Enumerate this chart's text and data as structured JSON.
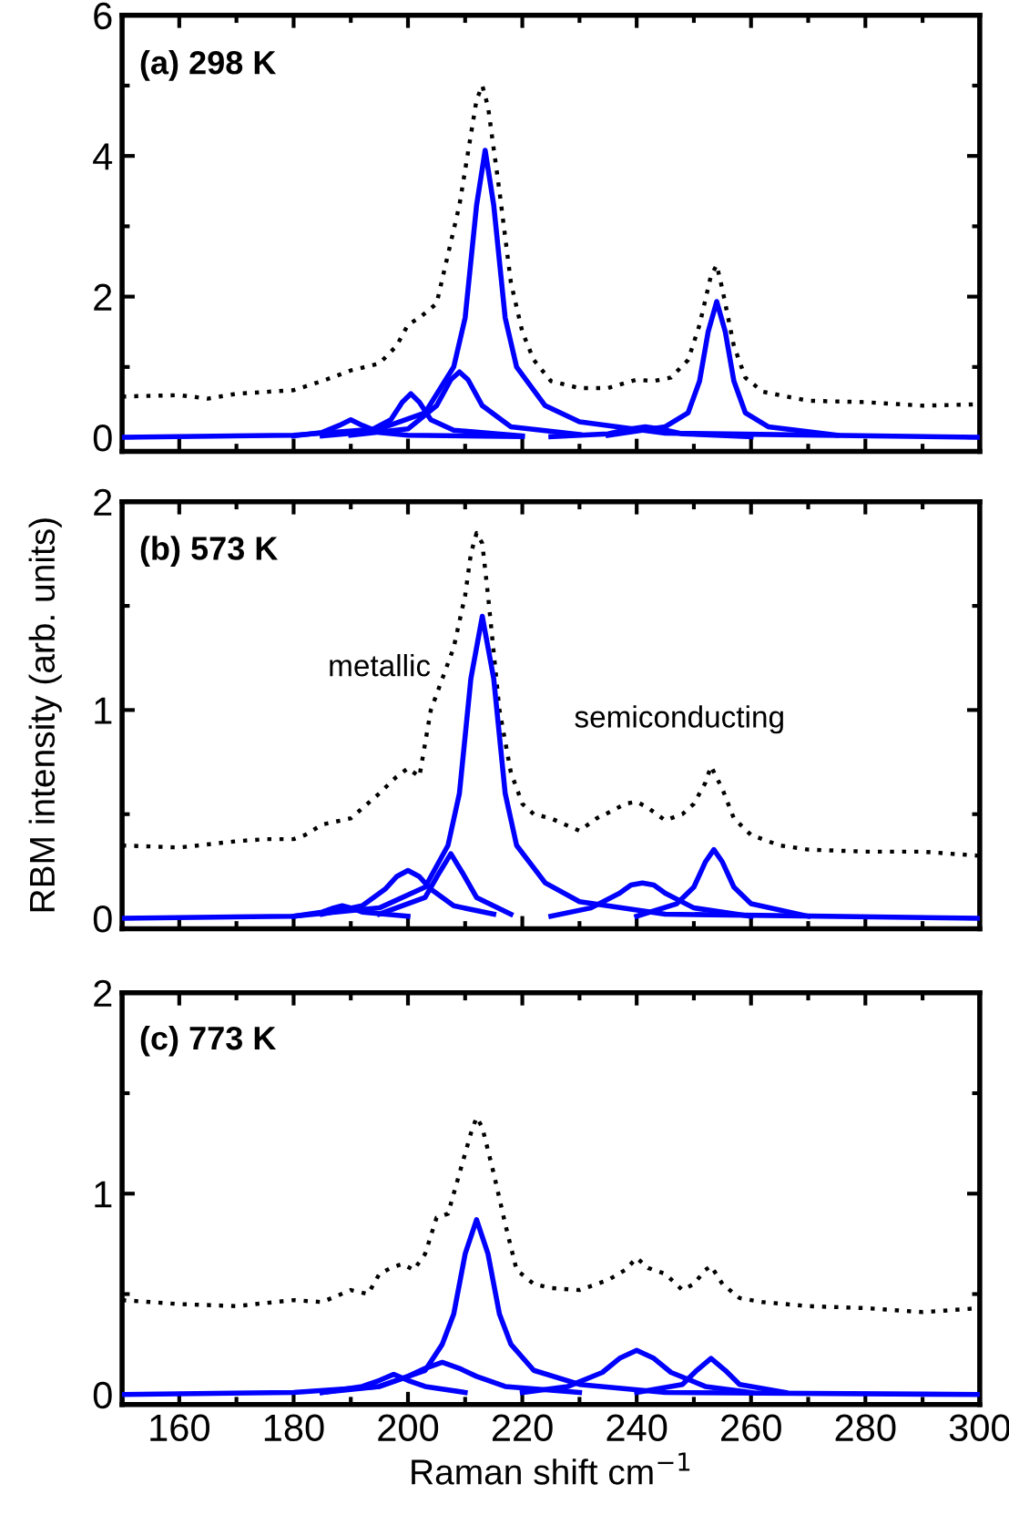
{
  "chart_data": [
    {
      "type": "line",
      "title": "(a) 298 K",
      "xlim": [
        150,
        300
      ],
      "xticks": [
        160,
        180,
        200,
        220,
        240,
        260,
        280,
        300
      ],
      "ylim": [
        -0.2,
        6
      ],
      "yticks": [
        0,
        2,
        4,
        6
      ],
      "tick_labels": "y",
      "grid": false,
      "marker": "none",
      "series": [
        {
          "color": "#000000",
          "line_style": "dotted",
          "x": [
            150,
            160,
            165,
            170,
            180,
            185,
            190,
            195,
            198,
            200,
            202,
            205,
            207,
            209,
            211,
            212,
            213,
            214,
            216,
            218,
            220,
            222,
            225,
            230,
            235,
            240,
            243,
            246,
            249,
            251,
            253,
            254,
            255,
            257,
            259,
            262,
            265,
            270,
            280,
            290,
            300
          ],
          "values": [
            0.58,
            0.6,
            0.55,
            0.62,
            0.67,
            0.8,
            0.95,
            1.05,
            1.3,
            1.6,
            1.7,
            1.9,
            2.6,
            3.3,
            4.3,
            4.8,
            5.0,
            4.7,
            3.5,
            2.2,
            1.5,
            1.1,
            0.8,
            0.7,
            0.7,
            0.82,
            0.8,
            0.85,
            1.1,
            1.6,
            2.3,
            2.45,
            2.1,
            1.3,
            0.85,
            0.65,
            0.6,
            0.52,
            0.5,
            0.45,
            0.47
          ]
        },
        {
          "color": "#0000ff",
          "line_style": "solid",
          "x": [
            180,
            185,
            188,
            190,
            192,
            195,
            200,
            220
          ],
          "values": [
            0.02,
            0.07,
            0.17,
            0.25,
            0.17,
            0.07,
            0.03,
            0.01
          ]
        },
        {
          "color": "#0000ff",
          "line_style": "solid",
          "x": [
            185,
            193,
            197,
            199,
            200.5,
            202,
            204,
            208,
            220
          ],
          "values": [
            0.02,
            0.08,
            0.25,
            0.5,
            0.62,
            0.5,
            0.25,
            0.1,
            0.02
          ]
        },
        {
          "color": "#0000ff",
          "line_style": "solid",
          "x": [
            190,
            200,
            205,
            207.5,
            209,
            210.5,
            213,
            218,
            230
          ],
          "values": [
            0.03,
            0.12,
            0.45,
            0.82,
            0.93,
            0.82,
            0.45,
            0.15,
            0.04
          ]
        },
        {
          "color": "#0000ff",
          "line_style": "solid",
          "x": [
            150,
            180,
            195,
            203,
            208,
            210,
            212,
            213.5,
            215,
            217,
            219,
            224,
            230,
            245,
            300
          ],
          "values": [
            0,
            0.03,
            0.12,
            0.35,
            1.0,
            1.7,
            3.3,
            4.08,
            3.3,
            1.7,
            1.0,
            0.45,
            0.22,
            0.06,
            0
          ]
        },
        {
          "color": "#0000ff",
          "line_style": "solid",
          "x": [
            225,
            235,
            239,
            241.5,
            244,
            248,
            260
          ],
          "values": [
            0.01,
            0.05,
            0.12,
            0.15,
            0.12,
            0.05,
            0.01
          ]
        },
        {
          "color": "#0000ff",
          "line_style": "solid",
          "x": [
            235,
            245,
            249,
            251,
            252.5,
            254,
            255.5,
            257,
            259,
            263,
            275
          ],
          "values": [
            0.03,
            0.15,
            0.35,
            0.8,
            1.5,
            1.93,
            1.5,
            0.8,
            0.35,
            0.15,
            0.03
          ]
        }
      ]
    },
    {
      "type": "line",
      "title": "(b) 573 K",
      "ylabel": "RBM intensity (arb. units)",
      "xlim": [
        150,
        300
      ],
      "xticks": [
        160,
        180,
        200,
        220,
        240,
        260,
        280,
        300
      ],
      "ylim": [
        -0.05,
        2
      ],
      "yticks": [
        0,
        1,
        2
      ],
      "tick_labels": "y",
      "grid": false,
      "marker": "none",
      "annotations": [
        "metallic",
        "semiconducting"
      ],
      "series": [
        {
          "color": "#000000",
          "line_style": "dotted",
          "x": [
            150,
            160,
            170,
            175,
            180,
            182,
            185,
            190,
            195,
            198,
            200,
            202,
            204,
            206,
            208,
            210,
            211,
            212,
            213,
            214,
            216,
            218,
            220,
            222,
            225,
            230,
            233,
            236,
            238,
            240,
            242,
            245,
            248,
            250,
            252,
            253,
            255,
            257,
            260,
            265,
            270,
            280,
            290,
            300
          ],
          "values": [
            0.35,
            0.34,
            0.37,
            0.38,
            0.38,
            0.4,
            0.45,
            0.48,
            0.6,
            0.68,
            0.72,
            0.68,
            1.0,
            1.15,
            1.3,
            1.55,
            1.75,
            1.85,
            1.8,
            1.55,
            1.0,
            0.7,
            0.55,
            0.5,
            0.48,
            0.42,
            0.48,
            0.52,
            0.55,
            0.56,
            0.53,
            0.47,
            0.5,
            0.55,
            0.65,
            0.73,
            0.62,
            0.48,
            0.4,
            0.35,
            0.33,
            0.32,
            0.32,
            0.3
          ]
        },
        {
          "color": "#0000ff",
          "line_style": "solid",
          "x": [
            180,
            185,
            187,
            188.5,
            190,
            192,
            200
          ],
          "values": [
            0.01,
            0.03,
            0.05,
            0.06,
            0.05,
            0.03,
            0.01
          ]
        },
        {
          "color": "#0000ff",
          "line_style": "solid",
          "x": [
            185,
            192,
            196,
            198,
            200,
            202,
            204,
            208,
            215
          ],
          "values": [
            0.02,
            0.06,
            0.14,
            0.2,
            0.23,
            0.2,
            0.14,
            0.06,
            0.02
          ]
        },
        {
          "color": "#0000ff",
          "line_style": "solid",
          "x": [
            195,
            203,
            205.5,
            207.5,
            209.5,
            212,
            218
          ],
          "values": [
            0.02,
            0.1,
            0.22,
            0.31,
            0.22,
            0.1,
            0.02
          ]
        },
        {
          "color": "#0000ff",
          "line_style": "solid",
          "x": [
            150,
            180,
            195,
            203,
            207,
            209,
            211,
            213,
            215,
            217,
            219,
            224,
            230,
            245,
            300
          ],
          "values": [
            0,
            0.01,
            0.05,
            0.15,
            0.35,
            0.6,
            1.15,
            1.45,
            1.15,
            0.6,
            0.35,
            0.17,
            0.08,
            0.02,
            0
          ]
        },
        {
          "color": "#0000ff",
          "line_style": "solid",
          "x": [
            225,
            232,
            237,
            239,
            241,
            243,
            245,
            250,
            260
          ],
          "values": [
            0.01,
            0.05,
            0.12,
            0.16,
            0.17,
            0.16,
            0.12,
            0.05,
            0.01
          ]
        },
        {
          "color": "#0000ff",
          "line_style": "solid",
          "x": [
            240,
            247,
            250,
            252,
            253.5,
            255,
            257,
            260,
            270
          ],
          "values": [
            0.01,
            0.07,
            0.15,
            0.27,
            0.33,
            0.27,
            0.15,
            0.07,
            0.01
          ]
        }
      ]
    },
    {
      "type": "line",
      "title": "(c) 773 K",
      "xlabel": "Raman shift cm$^{−1}$",
      "xlim": [
        150,
        300
      ],
      "xticks": [
        160,
        180,
        200,
        220,
        240,
        260,
        280,
        300
      ],
      "ylim": [
        -0.05,
        2
      ],
      "yticks": [
        0,
        1,
        2
      ],
      "grid": false,
      "marker": "none",
      "series": [
        {
          "color": "#000000",
          "line_style": "dotted",
          "x": [
            150,
            160,
            170,
            180,
            185,
            190,
            193,
            195,
            197,
            199,
            201,
            203,
            205,
            207,
            209,
            211,
            212,
            213,
            215,
            217,
            219,
            222,
            225,
            230,
            235,
            238,
            240,
            242,
            245,
            248,
            250,
            252,
            253,
            255,
            258,
            262,
            270,
            280,
            290,
            300
          ],
          "values": [
            0.47,
            0.45,
            0.44,
            0.47,
            0.46,
            0.52,
            0.5,
            0.6,
            0.63,
            0.65,
            0.62,
            0.7,
            0.88,
            0.9,
            1.1,
            1.3,
            1.38,
            1.33,
            1.1,
            0.85,
            0.62,
            0.55,
            0.53,
            0.52,
            0.57,
            0.62,
            0.68,
            0.63,
            0.6,
            0.52,
            0.55,
            0.62,
            0.64,
            0.55,
            0.48,
            0.46,
            0.44,
            0.43,
            0.41,
            0.43
          ]
        },
        {
          "color": "#0000ff",
          "line_style": "solid",
          "x": [
            185,
            192,
            195,
            197.5,
            200,
            203,
            210
          ],
          "values": [
            0.01,
            0.04,
            0.07,
            0.1,
            0.07,
            0.04,
            0.01
          ]
        },
        {
          "color": "#0000ff",
          "line_style": "solid",
          "x": [
            185,
            195,
            200,
            203,
            206,
            209,
            212,
            217,
            230
          ],
          "values": [
            0.01,
            0.04,
            0.09,
            0.13,
            0.16,
            0.13,
            0.09,
            0.04,
            0.01
          ]
        },
        {
          "color": "#0000ff",
          "line_style": "solid",
          "x": [
            150,
            180,
            195,
            203,
            206,
            208,
            210,
            212,
            214,
            216,
            218,
            222,
            230,
            245,
            300
          ],
          "values": [
            0,
            0.01,
            0.04,
            0.12,
            0.25,
            0.4,
            0.7,
            0.87,
            0.7,
            0.4,
            0.25,
            0.12,
            0.05,
            0.01,
            0
          ]
        },
        {
          "color": "#0000ff",
          "line_style": "solid",
          "x": [
            220,
            228,
            234,
            237,
            240,
            243,
            246,
            252,
            260
          ],
          "values": [
            0.01,
            0.04,
            0.11,
            0.18,
            0.22,
            0.18,
            0.11,
            0.04,
            0.01
          ]
        },
        {
          "color": "#0000ff",
          "line_style": "solid",
          "x": [
            240,
            248,
            250.5,
            253,
            255.5,
            258,
            266
          ],
          "values": [
            0.01,
            0.05,
            0.12,
            0.18,
            0.12,
            0.05,
            0.01
          ]
        }
      ]
    }
  ]
}
